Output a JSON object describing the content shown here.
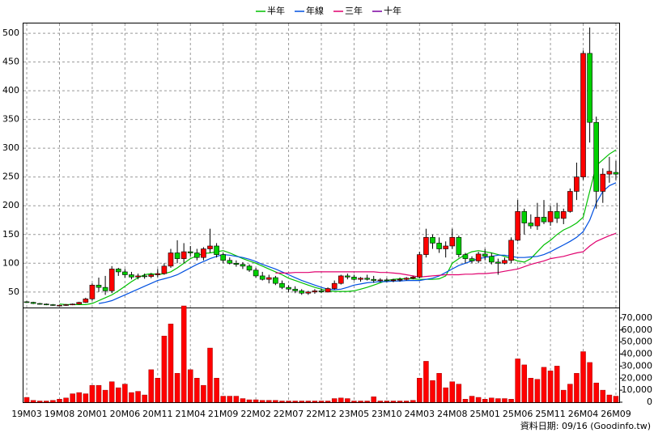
{
  "chart_data": {
    "type": "candlestick",
    "series": [
      {
        "name": "半年",
        "color": "#00c000",
        "values": [
          null,
          null,
          null,
          null,
          null,
          29,
          28,
          28,
          28,
          28,
          30,
          35,
          40,
          45,
          52,
          60,
          68,
          75,
          80,
          82,
          80,
          82,
          85,
          92,
          100,
          108,
          113,
          117,
          118,
          120,
          122,
          118,
          113,
          108,
          104,
          100,
          95,
          90,
          85,
          80,
          74,
          70,
          66,
          62,
          58,
          55,
          52,
          51,
          51,
          51,
          52,
          55,
          58,
          62,
          66,
          70,
          72,
          73,
          73,
          73,
          72,
          72,
          72,
          73,
          78,
          100,
          108,
          115,
          120,
          122,
          120,
          118,
          115,
          112,
          108,
          104,
          102,
          108,
          120,
          132,
          140,
          150,
          158,
          163,
          170,
          180,
          225,
          270,
          280,
          290,
          297
        ]
      },
      {
        "name": "年線",
        "color": "#0050e0",
        "values": [
          null,
          null,
          null,
          null,
          null,
          null,
          null,
          null,
          null,
          null,
          null,
          30,
          32,
          35,
          40,
          45,
          50,
          55,
          60,
          65,
          70,
          73,
          76,
          80,
          86,
          92,
          98,
          103,
          108,
          112,
          115,
          114,
          112,
          110,
          107,
          103,
          98,
          94,
          90,
          85,
          80,
          75,
          70,
          66,
          62,
          58,
          55,
          54,
          55,
          58,
          62,
          64,
          66,
          67,
          68,
          68,
          69,
          69,
          70,
          70,
          70,
          72,
          74,
          78,
          84,
          90,
          96,
          100,
          104,
          108,
          110,
          112,
          114,
          114,
          112,
          110,
          110,
          111,
          112,
          115,
          120,
          126,
          132,
          138,
          145,
          155,
          175,
          205,
          225,
          235,
          240
        ]
      },
      {
        "name": "三年",
        "color": "#e0006e",
        "values": [
          null,
          null,
          null,
          null,
          null,
          null,
          null,
          null,
          null,
          null,
          null,
          null,
          null,
          null,
          null,
          null,
          null,
          null,
          null,
          null,
          null,
          null,
          null,
          null,
          null,
          null,
          null,
          null,
          null,
          null,
          null,
          null,
          null,
          null,
          null,
          null,
          null,
          null,
          83,
          83,
          83,
          84,
          84,
          84,
          85,
          85,
          85,
          85,
          85,
          85,
          85,
          85,
          85,
          85,
          84,
          84,
          83,
          82,
          80,
          78,
          76,
          77,
          78,
          79,
          80,
          80,
          80,
          81,
          81,
          82,
          82,
          83,
          84,
          86,
          88,
          90,
          94,
          98,
          101,
          104,
          108,
          110,
          112,
          115,
          118,
          120,
          130,
          138,
          143,
          148,
          152
        ]
      },
      {
        "name": "十年",
        "color": "#7a00a0"
      }
    ],
    "categories": [
      "19M03",
      null,
      null,
      null,
      null,
      "19M08",
      null,
      null,
      null,
      null,
      "20M01",
      null,
      null,
      null,
      null,
      "20M06",
      null,
      null,
      null,
      null,
      "20M11",
      null,
      null,
      null,
      null,
      "21M04",
      null,
      null,
      null,
      null,
      "21M09",
      null,
      null,
      null,
      null,
      "22M02",
      null,
      null,
      null,
      null,
      "22M07",
      null,
      null,
      null,
      null,
      "22M12",
      null,
      null,
      null,
      null,
      "23M05",
      null,
      null,
      null,
      null,
      "23M10",
      null,
      null,
      null,
      null,
      "24M03",
      null,
      null,
      null,
      null,
      "24M08",
      null,
      null,
      null,
      null,
      "25M01",
      null,
      null,
      null,
      null,
      "25M06",
      null,
      null,
      null,
      null,
      "25M11",
      null,
      null,
      null,
      null,
      "26M04",
      null,
      null,
      null,
      null,
      "26M09"
    ],
    "candles": [
      [
        33,
        34,
        31,
        32
      ],
      [
        32,
        33,
        29,
        30
      ],
      [
        30,
        31,
        28,
        29
      ],
      [
        29,
        30,
        27,
        28
      ],
      [
        28,
        29,
        26,
        27
      ],
      [
        27,
        28,
        26,
        27
      ],
      [
        27,
        29,
        26,
        28
      ],
      [
        28,
        30,
        27,
        29
      ],
      [
        29,
        33,
        28,
        32
      ],
      [
        32,
        40,
        31,
        38
      ],
      [
        38,
        65,
        35,
        62
      ],
      [
        62,
        75,
        50,
        58
      ],
      [
        58,
        78,
        45,
        52
      ],
      [
        52,
        95,
        48,
        90
      ],
      [
        90,
        92,
        78,
        85
      ],
      [
        85,
        90,
        75,
        80
      ],
      [
        80,
        85,
        72,
        76
      ],
      [
        76,
        82,
        72,
        78
      ],
      [
        78,
        82,
        73,
        77
      ],
      [
        77,
        83,
        74,
        80
      ],
      [
        80,
        90,
        76,
        82
      ],
      [
        82,
        100,
        80,
        95
      ],
      [
        95,
        125,
        92,
        118
      ],
      [
        118,
        140,
        100,
        108
      ],
      [
        108,
        135,
        100,
        120
      ],
      [
        120,
        130,
        112,
        118
      ],
      [
        118,
        125,
        105,
        110
      ],
      [
        110,
        128,
        105,
        125
      ],
      [
        125,
        160,
        118,
        130
      ],
      [
        130,
        135,
        110,
        115
      ],
      [
        115,
        118,
        100,
        105
      ],
      [
        105,
        110,
        98,
        100
      ],
      [
        100,
        105,
        94,
        98
      ],
      [
        98,
        102,
        90,
        95
      ],
      [
        95,
        98,
        85,
        88
      ],
      [
        88,
        92,
        75,
        78
      ],
      [
        78,
        85,
        70,
        72
      ],
      [
        72,
        80,
        65,
        75
      ],
      [
        75,
        78,
        62,
        65
      ],
      [
        65,
        70,
        55,
        58
      ],
      [
        58,
        62,
        50,
        55
      ],
      [
        55,
        60,
        48,
        52
      ],
      [
        52,
        55,
        45,
        48
      ],
      [
        48,
        52,
        45,
        50
      ],
      [
        50,
        55,
        47,
        52
      ],
      [
        52,
        56,
        48,
        50
      ],
      [
        50,
        58,
        49,
        56
      ],
      [
        56,
        70,
        54,
        65
      ],
      [
        65,
        80,
        63,
        78
      ],
      [
        78,
        82,
        72,
        76
      ],
      [
        76,
        80,
        70,
        72
      ],
      [
        72,
        76,
        68,
        74
      ],
      [
        74,
        80,
        70,
        72
      ],
      [
        72,
        78,
        66,
        70
      ],
      [
        70,
        74,
        67,
        71
      ],
      [
        71,
        74,
        68,
        70
      ],
      [
        70,
        73,
        67,
        71
      ],
      [
        71,
        75,
        68,
        72
      ],
      [
        72,
        76,
        70,
        74
      ],
      [
        74,
        78,
        72,
        76
      ],
      [
        76,
        120,
        74,
        115
      ],
      [
        115,
        160,
        110,
        145
      ],
      [
        145,
        150,
        125,
        135
      ],
      [
        135,
        145,
        118,
        125
      ],
      [
        125,
        138,
        110,
        130
      ],
      [
        130,
        160,
        125,
        145
      ],
      [
        145,
        148,
        110,
        115
      ],
      [
        115,
        118,
        100,
        108
      ],
      [
        108,
        112,
        100,
        104
      ],
      [
        104,
        120,
        100,
        116
      ],
      [
        116,
        125,
        105,
        112
      ],
      [
        112,
        118,
        98,
        102
      ],
      [
        102,
        108,
        80,
        100
      ],
      [
        100,
        110,
        98,
        105
      ],
      [
        105,
        145,
        100,
        140
      ],
      [
        140,
        210,
        138,
        190
      ],
      [
        190,
        195,
        150,
        170
      ],
      [
        170,
        185,
        160,
        165
      ],
      [
        165,
        205,
        158,
        180
      ],
      [
        180,
        210,
        168,
        172
      ],
      [
        172,
        200,
        165,
        190
      ],
      [
        190,
        205,
        170,
        178
      ],
      [
        178,
        195,
        168,
        190
      ],
      [
        190,
        230,
        188,
        225
      ],
      [
        225,
        275,
        210,
        250
      ],
      [
        250,
        470,
        245,
        465
      ],
      [
        465,
        510,
        310,
        345
      ],
      [
        345,
        355,
        195,
        225
      ],
      [
        225,
        265,
        205,
        255
      ],
      [
        255,
        285,
        240,
        260
      ],
      [
        258,
        278,
        245,
        255
      ]
    ],
    "up_color": "#ff0000",
    "down_color": "#00d000",
    "ylim": [
      23,
      517
    ],
    "yticks": [
      50,
      100,
      150,
      200,
      250,
      300,
      350,
      400,
      450,
      500
    ],
    "grid": true,
    "volume": {
      "color": "#ff0000",
      "values": [
        4000,
        1500,
        1000,
        1000,
        1500,
        2500,
        3500,
        7000,
        8000,
        7000,
        14000,
        14000,
        10000,
        17000,
        12000,
        15000,
        8000,
        9000,
        6000,
        27000,
        20000,
        55000,
        65000,
        24000,
        80000,
        27000,
        20000,
        14000,
        45000,
        20000,
        5000,
        5000,
        5000,
        3000,
        2000,
        2000,
        1500,
        1500,
        1500,
        1000,
        1000,
        1000,
        1000,
        1000,
        1000,
        1000,
        1000,
        3000,
        3500,
        3000,
        1000,
        1000,
        1000,
        4500,
        1000,
        1000,
        1000,
        1000,
        1000,
        1500,
        20000,
        34000,
        18000,
        24000,
        12000,
        17000,
        15000,
        2500,
        5000,
        4000,
        2500,
        3500,
        3000,
        3000,
        2500,
        36000,
        31000,
        20000,
        19000,
        29000,
        26000,
        30000,
        10000,
        15000,
        24000,
        42000,
        33000,
        16000,
        10000,
        6000,
        5000
      ],
      "ylim": [
        0,
        78000
      ],
      "yticks": [
        0,
        {
          "value": 10000,
          "label": "10,000"
        },
        {
          "value": 20000,
          "label": "20,000"
        },
        {
          "value": 30000,
          "label": "30,000"
        },
        {
          "value": 40000,
          "label": "40,000"
        },
        {
          "value": 50000,
          "label": "50,000"
        },
        {
          "value": 60000,
          "label": "60,000"
        },
        {
          "value": 70000,
          "label": "70,000"
        }
      ]
    },
    "footer": "資料日期: 09/16  (Goodinfo.tw)"
  }
}
